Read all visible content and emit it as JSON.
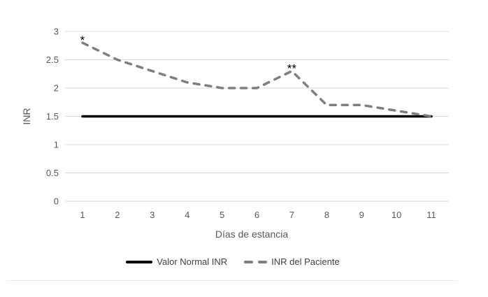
{
  "chart_data": {
    "type": "line",
    "categories": [
      "1",
      "2",
      "3",
      "4",
      "5",
      "6",
      "7",
      "8",
      "9",
      "10",
      "11"
    ],
    "series": [
      {
        "name": "Valor Normal INR",
        "style": "solid",
        "color": "#000000",
        "values": [
          1.5,
          1.5,
          1.5,
          1.5,
          1.5,
          1.5,
          1.5,
          1.5,
          1.5,
          1.5,
          1.5
        ]
      },
      {
        "name": "INR del Paciente",
        "style": "dashed",
        "color": "#7f7f7f",
        "values": [
          2.8,
          2.5,
          2.3,
          2.1,
          2.0,
          2.0,
          2.3,
          1.7,
          1.7,
          1.6,
          1.5
        ]
      }
    ],
    "title": "",
    "xlabel": "Días de estancia",
    "ylabel": "INR",
    "ylim": [
      0,
      3
    ],
    "y_tick_step": 0.5,
    "y_tick_labels": [
      "0",
      "0.5",
      "1",
      "1.5",
      "2",
      "2.5",
      "3"
    ],
    "grid": "horizontal",
    "legend_position": "bottom",
    "annotations": [
      {
        "text": "*",
        "category": "1",
        "series": "INR del Paciente"
      },
      {
        "text": "**",
        "category": "7",
        "series": "INR del Paciente"
      }
    ],
    "colors": {
      "gridline": "#d9d9d9",
      "tick_text": "#595959",
      "axis_title_text": "#595959",
      "legend_text": "#404040",
      "annotation_text": "#000000",
      "background": "#ffffff"
    }
  }
}
